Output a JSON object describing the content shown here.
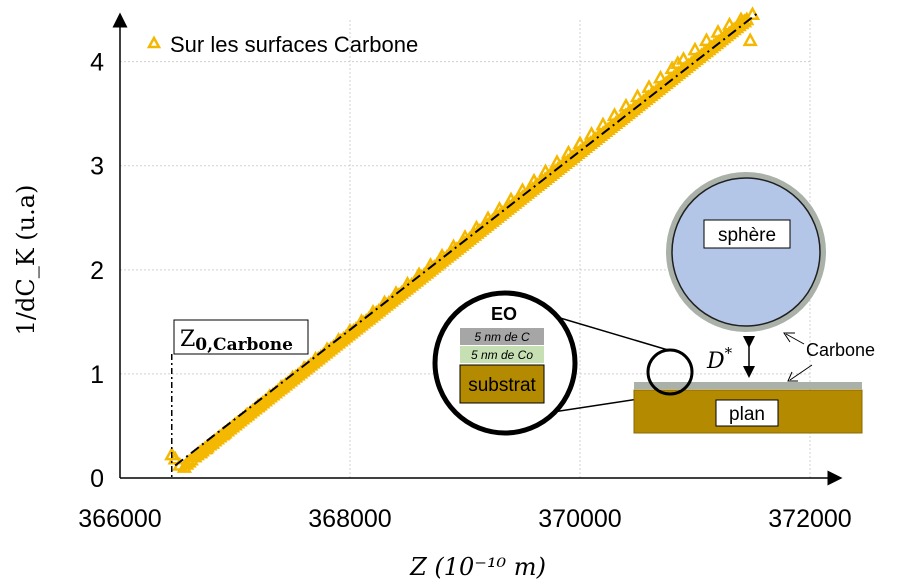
{
  "chart_data": {
    "type": "scatter",
    "xlabel": "Z (10⁻¹⁰ m)",
    "ylabel": "1/dC_K (u.a)",
    "xlim": [
      366000,
      372000
    ],
    "ylim": [
      0,
      4.4
    ],
    "x_ticks": [
      "366000",
      "368000",
      "370000",
      "372000"
    ],
    "y_ticks": [
      "0",
      "1",
      "2",
      "3",
      "4"
    ],
    "grid": true,
    "legend_position": "top-left",
    "series": [
      {
        "name": "Sur les surfaces Carbone",
        "marker": "triangle-open",
        "color": "#f5b800",
        "x": [
          366450,
          366480,
          366520,
          366560,
          366580,
          366600,
          366620,
          366650,
          366700,
          366750,
          366800,
          366900,
          367000,
          367100,
          367200,
          367300,
          367400,
          367500,
          367600,
          367700,
          367800,
          367900,
          368000,
          368100,
          368200,
          368300,
          368400,
          368500,
          368600,
          368700,
          368800,
          368900,
          369000,
          369100,
          369200,
          369300,
          369400,
          369500,
          369600,
          369700,
          369800,
          369900,
          370000,
          370100,
          370200,
          370300,
          370400,
          370500,
          370600,
          370700,
          370800,
          370900,
          371000,
          371100,
          371200,
          371300,
          371400,
          371500,
          370850,
          371430,
          371480
        ],
        "y": [
          0.22,
          0.18,
          0.12,
          0.1,
          0.13,
          0.15,
          0.17,
          0.2,
          0.24,
          0.28,
          0.33,
          0.42,
          0.51,
          0.6,
          0.69,
          0.78,
          0.87,
          0.96,
          1.05,
          1.14,
          1.23,
          1.32,
          1.41,
          1.5,
          1.59,
          1.68,
          1.77,
          1.86,
          1.95,
          2.04,
          2.13,
          2.22,
          2.31,
          2.4,
          2.49,
          2.58,
          2.67,
          2.76,
          2.85,
          2.94,
          3.03,
          3.12,
          3.21,
          3.3,
          3.39,
          3.48,
          3.57,
          3.66,
          3.75,
          3.84,
          3.93,
          4.02,
          4.11,
          4.2,
          4.28,
          4.35,
          4.4,
          4.45,
          3.98,
          4.38,
          4.2
        ]
      }
    ],
    "fit_line": {
      "style": "dash-dot",
      "color": "#000000",
      "x": [
        366480,
        371550
      ],
      "y": [
        0.12,
        4.47
      ]
    },
    "annotations": {
      "z0_label": "Z",
      "z0_sub": "0,Carbone",
      "z0_x": 366450
    }
  },
  "inset": {
    "zoom_title": "EO",
    "layer_c": "5 nm de C",
    "layer_co": "5 nm de Co",
    "substrate": "substrat",
    "sphere": "sphère",
    "plane": "plan",
    "carbone": "Carbone",
    "gap_label": "D",
    "gap_sup": "*"
  },
  "colors": {
    "marker": "#f5b800",
    "sphere_fill": "#b4c6e7",
    "sphere_ring": "#a9b1a8",
    "substrate": "#b38a00",
    "layer_c": "#a6a6a6",
    "layer_co": "#c6e0b4"
  }
}
